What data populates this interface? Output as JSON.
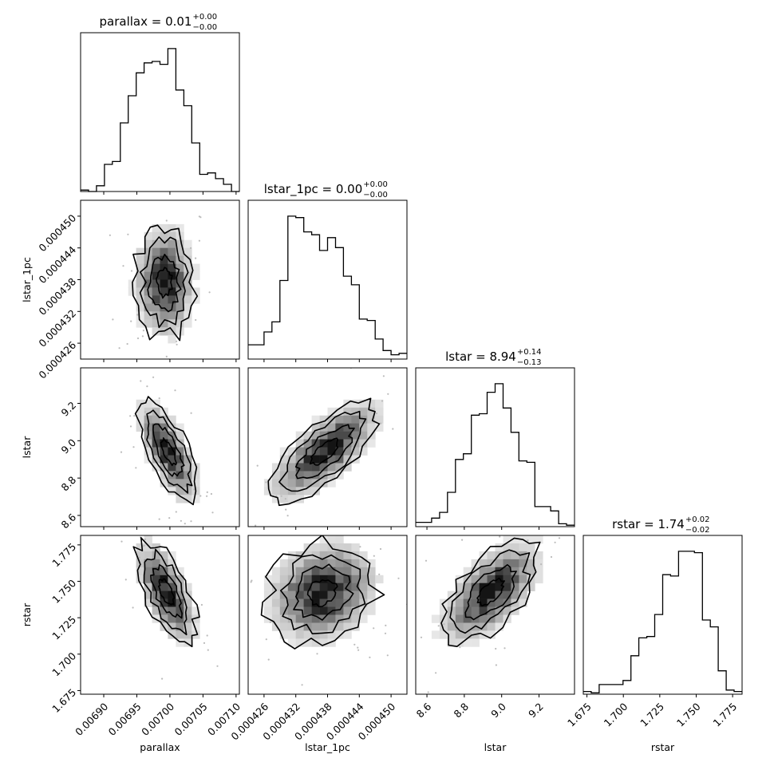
{
  "chart_data": {
    "type": "corner",
    "parameters": [
      "parallax",
      "lstar_1pc",
      "lstar",
      "rstar"
    ],
    "titles": [
      {
        "name": "parallax",
        "median": "0.01",
        "upper": "+0.00",
        "lower": "−0.00"
      },
      {
        "name": "lstar_1pc",
        "median": "0.00",
        "upper": "+0.00",
        "lower": "−0.00"
      },
      {
        "name": "lstar",
        "median": "8.94",
        "upper": "+0.14",
        "lower": "−0.13"
      },
      {
        "name": "rstar",
        "median": "1.74",
        "upper": "+0.02",
        "lower": "−0.02"
      }
    ],
    "axes": [
      {
        "name": "parallax",
        "range": [
          0.006865,
          0.007105
        ],
        "ticks": [
          0.0069,
          0.00695,
          0.007,
          0.00705,
          0.0071
        ],
        "tick_labels": [
          "0.00690",
          "0.00695",
          "0.00700",
          "0.00705",
          "0.00710"
        ]
      },
      {
        "name": "lstar_1pc",
        "range": [
          0.000423,
          0.000453
        ],
        "ticks": [
          0.000426,
          0.000432,
          0.000438,
          0.000444,
          0.00045
        ],
        "tick_labels": [
          "0.000426",
          "0.000432",
          "0.000438",
          "0.000444",
          "0.000450"
        ]
      },
      {
        "name": "lstar",
        "range": [
          8.54,
          9.39
        ],
        "ticks": [
          8.6,
          8.8,
          9.0,
          9.2
        ],
        "tick_labels": [
          "8.6",
          "8.8",
          "9.0",
          "9.2"
        ]
      },
      {
        "name": "rstar",
        "range": [
          1.6725,
          1.7815
        ],
        "ticks": [
          1.675,
          1.7,
          1.725,
          1.75,
          1.775
        ],
        "tick_labels": [
          "1.675",
          "1.700",
          "1.725",
          "1.750",
          "1.775"
        ]
      }
    ],
    "histograms": [
      {
        "param": "parallax",
        "bin_edges": [
          0.006865,
          0.006877,
          0.006889,
          0.006901,
          0.006913,
          0.006925,
          0.006937,
          0.006949,
          0.006961,
          0.006973,
          0.006985,
          0.006997,
          0.007009,
          0.007021,
          0.007033,
          0.007045,
          0.007057,
          0.007069,
          0.007081,
          0.007093,
          0.007105
        ],
        "counts": [
          1,
          0,
          4,
          19,
          21,
          48,
          67,
          83,
          90,
          91,
          89,
          100,
          71,
          60,
          34,
          12,
          13,
          9,
          5,
          0
        ]
      },
      {
        "param": "lstar_1pc",
        "bin_edges": [
          0.000423,
          0.0004245,
          0.000426,
          0.0004275,
          0.000429,
          0.0004305,
          0.000432,
          0.0004335,
          0.000435,
          0.0004365,
          0.000438,
          0.0004395,
          0.000441,
          0.0004425,
          0.000444,
          0.0004455,
          0.000447,
          0.0004485,
          0.00045,
          0.0004515,
          0.000453
        ],
        "counts": [
          10,
          10,
          19,
          26,
          55,
          100,
          99,
          89,
          87,
          76,
          85,
          78,
          58,
          52,
          28,
          27,
          14,
          6,
          3,
          4
        ]
      },
      {
        "param": "lstar",
        "bin_edges": [
          8.54,
          8.5825,
          8.625,
          8.6675,
          8.71,
          8.7525,
          8.795,
          8.8375,
          8.88,
          8.9225,
          8.965,
          9.0075,
          9.05,
          9.0925,
          9.135,
          9.1775,
          9.22,
          9.2625,
          9.305,
          9.3475,
          9.39
        ],
        "counts": [
          3,
          3,
          6,
          10,
          24,
          47,
          51,
          78,
          79,
          94,
          100,
          83,
          66,
          46,
          45,
          14,
          14,
          11,
          2,
          1
        ]
      },
      {
        "param": "rstar",
        "bin_edges": [
          1.6725,
          1.67795,
          1.6834,
          1.68885,
          1.6943,
          1.69975,
          1.7052,
          1.71065,
          1.7161,
          1.72155,
          1.727,
          1.73245,
          1.7379,
          1.74335,
          1.7488,
          1.75425,
          1.7597,
          1.76515,
          1.7706,
          1.77605,
          1.7815
        ],
        "counts": [
          2,
          1,
          7,
          7,
          7,
          10,
          28,
          41,
          42,
          58,
          87,
          86,
          104,
          104,
          103,
          54,
          49,
          17,
          3,
          2
        ]
      }
    ],
    "pairs": [
      {
        "x": "parallax",
        "y": "lstar_1pc",
        "correlation": "none",
        "contour_levels": [
          "0.5-sigma",
          "1-sigma",
          "1.5-sigma",
          "2-sigma"
        ]
      },
      {
        "x": "parallax",
        "y": "lstar",
        "correlation": "negative",
        "contour_levels": [
          "0.5-sigma",
          "1-sigma",
          "1.5-sigma",
          "2-sigma"
        ]
      },
      {
        "x": "lstar_1pc",
        "y": "lstar",
        "correlation": "positive",
        "contour_levels": [
          "0.5-sigma",
          "1-sigma",
          "1.5-sigma",
          "2-sigma"
        ]
      },
      {
        "x": "parallax",
        "y": "rstar",
        "correlation": "negative",
        "contour_levels": [
          "0.5-sigma",
          "1-sigma",
          "1.5-sigma",
          "2-sigma"
        ]
      },
      {
        "x": "lstar_1pc",
        "y": "rstar",
        "correlation": "weak positive",
        "contour_levels": [
          "0.5-sigma",
          "1-sigma",
          "1.5-sigma",
          "2-sigma"
        ]
      },
      {
        "x": "lstar",
        "y": "rstar",
        "correlation": "positive",
        "contour_levels": [
          "0.5-sigma",
          "1-sigma",
          "1.5-sigma",
          "2-sigma"
        ]
      }
    ],
    "xlabels": [
      "parallax",
      "lstar_1pc",
      "lstar",
      "rstar"
    ],
    "ylabels": [
      "",
      "lstar_1pc",
      "lstar",
      "rstar"
    ],
    "colors": {
      "line": "#000000",
      "density": "#000000",
      "background": "#ffffff"
    }
  }
}
